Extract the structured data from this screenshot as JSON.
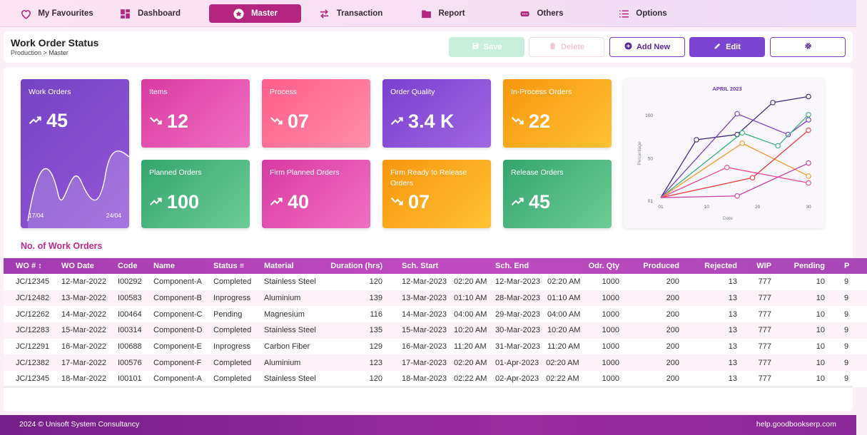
{
  "nav": [
    {
      "label": "My Favourites",
      "icon": "heart-icon"
    },
    {
      "label": "Dashboard",
      "icon": "dashboard-icon"
    },
    {
      "label": "Master",
      "icon": "star-icon"
    },
    {
      "label": "Transaction",
      "icon": "transfer-icon"
    },
    {
      "label": "Report",
      "icon": "folder-icon"
    },
    {
      "label": "Others",
      "icon": "more-icon"
    },
    {
      "label": "Options",
      "icon": "list-icon"
    }
  ],
  "active_nav": "Master",
  "header": {
    "title": "Work Order Status",
    "breadcrumb": "Production > Master"
  },
  "toolbar": {
    "save_label": "Save",
    "delete_label": "Delete",
    "add_new_label": "Add New",
    "edit_label": "Edit"
  },
  "cards": {
    "work_orders": {
      "label": "Work Orders",
      "value": "45",
      "trend": "up",
      "date_start": "17/04",
      "date_end": "24/04"
    },
    "items": {
      "label": "Items",
      "value": "12",
      "trend": "down"
    },
    "process": {
      "label": "Process",
      "value": "07",
      "trend": "down"
    },
    "order_quality": {
      "label": "Order Quality",
      "value": "3.4 K",
      "trend": "up"
    },
    "in_process_orders": {
      "label": "In-Process Orders",
      "value": "22",
      "trend": "down"
    },
    "planned_orders": {
      "label": "Planned Orders",
      "value": "100",
      "trend": "up"
    },
    "firm_planned_orders": {
      "label": "Firm Planned Orders",
      "value": "40",
      "trend": "up"
    },
    "firm_ready": {
      "label": "Firm Ready to Release Orders",
      "value": "07",
      "trend": "down"
    },
    "release_orders": {
      "label": "Release Orders",
      "value": "45",
      "trend": "up"
    }
  },
  "chart_data": {
    "type": "line",
    "title": "APRIL 2023",
    "xlabel": "Date",
    "ylabel": "Percentage",
    "x_ticks": [
      "01",
      "10",
      "20",
      "30"
    ],
    "y_ticks": [
      "01",
      "50",
      "100"
    ],
    "xlim": [
      1,
      30
    ],
    "ylim": [
      1,
      100
    ],
    "grid": false,
    "series": [
      {
        "color": "#3d2a7d",
        "x": [
          1,
          8,
          16,
          23,
          30
        ],
        "y": [
          5,
          72,
          78,
          115,
          122
        ]
      },
      {
        "color": "#7b3fc8",
        "x": [
          1,
          16,
          26,
          30
        ],
        "y": [
          5,
          102,
          78,
          95
        ]
      },
      {
        "color": "#2fb47a",
        "x": [
          1,
          17,
          24,
          30
        ],
        "y": [
          5,
          80,
          65,
          101
        ]
      },
      {
        "color": "#f59a2a",
        "x": [
          1,
          17,
          30
        ],
        "y": [
          5,
          68,
          30
        ]
      },
      {
        "color": "#ee3a3a",
        "x": [
          1,
          19,
          30
        ],
        "y": [
          5,
          28,
          83
        ]
      },
      {
        "color": "#ee4a92",
        "x": [
          1,
          14,
          30
        ],
        "y": [
          5,
          40,
          22
        ]
      },
      {
        "color": "#c83ca7",
        "x": [
          1,
          16,
          30
        ],
        "y": [
          5,
          7,
          45
        ]
      }
    ]
  },
  "section_title": "No. of Work Orders",
  "table": {
    "columns": [
      "WO #",
      "WO Date",
      "Code",
      "Name",
      "Status",
      "Material",
      "Duration (hrs)",
      "Sch. Start",
      "Sch. End",
      "Odr. Qty",
      "Produced",
      "Rejected",
      "WIP",
      "Pending",
      "P"
    ],
    "rows": [
      {
        "wo": "JC/12345",
        "date": "12-Mar-2022",
        "code": "I00292",
        "name": "Component-A",
        "status": "Completed",
        "material": "Stainless Steel",
        "duration": "120",
        "start_date": "12-Mar-2023",
        "start_time": "02:20 AM",
        "end_date": "12-Mar-2023",
        "end_time": "02:20 AM",
        "qty": "1000",
        "produced": "200",
        "rejected": "13",
        "wip": "777",
        "pending": "10",
        "p": "9"
      },
      {
        "wo": "JC/12482",
        "date": "13-Mar-2022",
        "code": "I00583",
        "name": "Component-B",
        "status": "Inprogress",
        "material": "Aluminium",
        "duration": "139",
        "start_date": "13-Mar-2023",
        "start_time": "01:10 AM",
        "end_date": "28-Mar-2023",
        "end_time": "01:10 AM",
        "qty": "1000",
        "produced": "200",
        "rejected": "13",
        "wip": "777",
        "pending": "10",
        "p": "9"
      },
      {
        "wo": "JC/12262",
        "date": "14-Mar-2022",
        "code": "I00464",
        "name": "Component-C",
        "status": "Pending",
        "material": "Magnesium",
        "duration": "116",
        "start_date": "14-Mar-2023",
        "start_time": "04:00 AM",
        "end_date": "29-Mar-2023",
        "end_time": "04:00 AM",
        "qty": "1000",
        "produced": "200",
        "rejected": "13",
        "wip": "777",
        "pending": "10",
        "p": "9"
      },
      {
        "wo": "JC/12283",
        "date": "15-Mar-2022",
        "code": "I00314",
        "name": "Component-D",
        "status": "Completed",
        "material": "Stainless Steel",
        "duration": "135",
        "start_date": "15-Mar-2023",
        "start_time": "10:20 AM",
        "end_date": "30-Mar-2023",
        "end_time": "10:20 AM",
        "qty": "1000",
        "produced": "200",
        "rejected": "13",
        "wip": "777",
        "pending": "10",
        "p": "9"
      },
      {
        "wo": "JC/12291",
        "date": "16-Mar-2022",
        "code": "I00688",
        "name": "Component-E",
        "status": "Inprogress",
        "material": "Carbon Fiber",
        "duration": "129",
        "start_date": "16-Mar-2023",
        "start_time": "11:20 AM",
        "end_date": "31-Mar-2023",
        "end_time": "11:20 AM",
        "qty": "1000",
        "produced": "200",
        "rejected": "13",
        "wip": "777",
        "pending": "10",
        "p": "9"
      },
      {
        "wo": "JC/12382",
        "date": "17-Mar-2022",
        "code": "I00576",
        "name": "Component-F",
        "status": "Completed",
        "material": "Aluminium",
        "duration": "123",
        "start_date": "17-Mar-2023",
        "start_time": "02:20 AM",
        "end_date": "01-Apr-2023",
        "end_time": "02:20 AM",
        "qty": "1000",
        "produced": "200",
        "rejected": "13",
        "wip": "777",
        "pending": "10",
        "p": "9"
      },
      {
        "wo": "JC/12345",
        "date": "18-Mar-2022",
        "code": "I00101",
        "name": "Component-A",
        "status": "Completed",
        "material": "Stainless Steel",
        "duration": "120",
        "start_date": "18-Mar-2023",
        "start_time": "02:22 AM",
        "end_date": "02-Apr-2023",
        "end_time": "02:22 AM",
        "qty": "1000",
        "produced": "200",
        "rejected": "13",
        "wip": "777",
        "pending": "10",
        "p": "9"
      }
    ]
  },
  "footer": {
    "copyright": "2024 © Unisoft System Consultancy",
    "help_link": "help.goodbookserp.com"
  }
}
